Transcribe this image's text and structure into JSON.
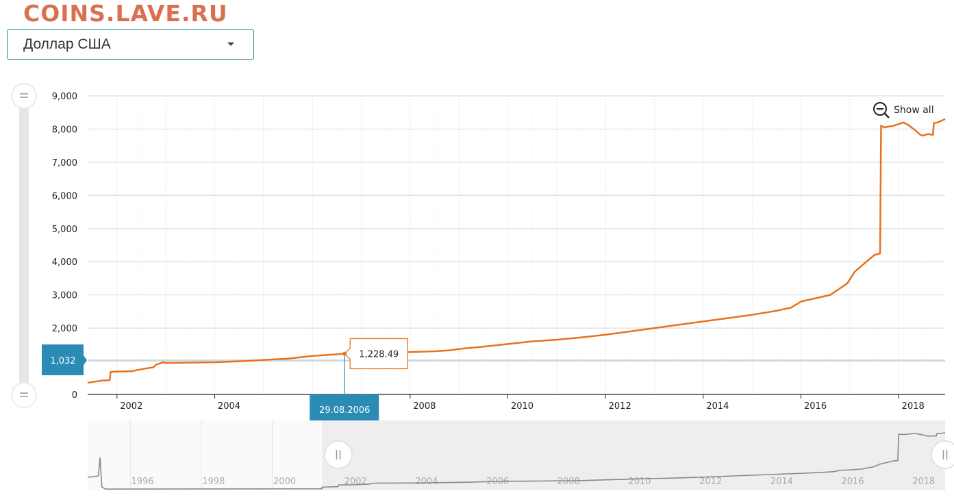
{
  "watermark": "COINS.LAVE.RU",
  "selector": {
    "value": "Доллар США",
    "icon": "chevron-down-icon"
  },
  "colors": {
    "line": "#e8711c",
    "accent": "#2a8bb5",
    "grid": "#dddddd",
    "nav_line": "#888888",
    "nav_mask": "#eeeeee"
  },
  "controls": {
    "reset_zoom_label": "Show all",
    "reset_zoom_icon": "zoom-out-icon"
  },
  "crosshair": {
    "date_label": "29.08.2006",
    "value_label": "1,228.49",
    "y_cursor_label": "1,032"
  },
  "chart_data": {
    "type": "line",
    "ylim": [
      0,
      9000
    ],
    "yticks": [
      0,
      1000,
      2000,
      3000,
      4000,
      5000,
      6000,
      7000,
      8000,
      9000
    ],
    "ytick_labels": [
      "0",
      "1,000",
      "2,000",
      "3,000",
      "4,000",
      "5,000",
      "6,000",
      "7,000",
      "8,000",
      "9,000"
    ],
    "xlim": [
      2001.4,
      2018.95
    ],
    "xticks": [
      2002,
      2004,
      2008,
      2010,
      2012,
      2014,
      2016,
      2018
    ],
    "xtick_labels": [
      "2002",
      "2004",
      "2008",
      "2010",
      "2012",
      "2014",
      "2016",
      "2018"
    ],
    "grid": "on",
    "x": [
      2001.4,
      2001.7,
      2001.85,
      2001.87,
      2002.0,
      2002.3,
      2002.5,
      2002.75,
      2002.8,
      2002.95,
      2003.0,
      2003.5,
      2004.0,
      2004.5,
      2005.0,
      2005.5,
      2006.0,
      2006.4,
      2006.66,
      2006.9,
      2007.2,
      2007.5,
      2008.0,
      2008.5,
      2008.8,
      2009.0,
      2009.5,
      2010.0,
      2010.5,
      2011.0,
      2011.5,
      2012.0,
      2012.5,
      2013.0,
      2013.5,
      2014.0,
      2014.5,
      2015.0,
      2015.5,
      2015.8,
      2016.0,
      2016.3,
      2016.6,
      2016.8,
      2016.95,
      2017.1,
      2017.3,
      2017.5,
      2017.62,
      2017.64,
      2017.7,
      2017.9,
      2018.0,
      2018.1,
      2018.2,
      2018.35,
      2018.45,
      2018.5,
      2018.6,
      2018.7,
      2018.72,
      2018.8,
      2018.95
    ],
    "values": [
      350,
      420,
      430,
      680,
      690,
      700,
      760,
      820,
      900,
      970,
      950,
      960,
      970,
      1000,
      1040,
      1080,
      1160,
      1200,
      1228.49,
      1230,
      1240,
      1250,
      1280,
      1300,
      1330,
      1370,
      1440,
      1520,
      1600,
      1650,
      1720,
      1800,
      1900,
      2000,
      2100,
      2200,
      2300,
      2400,
      2520,
      2620,
      2800,
      2900,
      3000,
      3200,
      3350,
      3700,
      3950,
      4200,
      4250,
      8100,
      8050,
      8100,
      8150,
      8200,
      8120,
      7950,
      7820,
      7800,
      7850,
      7820,
      8180,
      8200,
      8300
    ],
    "navigator": {
      "xtick_labels": [
        "1996",
        "1998",
        "2000",
        "2002",
        "2004",
        "2006",
        "2008",
        "2010",
        "2012",
        "2014",
        "2016",
        "2018"
      ],
      "xticks": [
        1996,
        1998,
        2000,
        2002,
        2004,
        2006,
        2008,
        2010,
        2012,
        2014,
        2016,
        2018
      ],
      "selected_range": [
        2001.4,
        2018.95
      ]
    }
  }
}
